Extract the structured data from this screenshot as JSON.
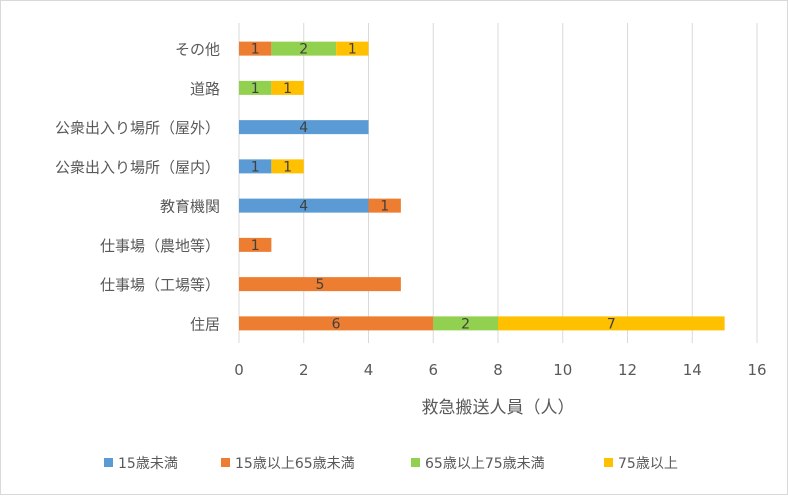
{
  "chart_data": {
    "type": "bar",
    "orientation": "horizontal",
    "stacked": true,
    "categories": [
      "住居",
      "仕事場（工場等）",
      "仕事場（農地等）",
      "教育機関",
      "公衆出入り場所（屋内）",
      "公衆出入り場所（屋外）",
      "道路",
      "その他"
    ],
    "series": [
      {
        "name": "15歳未満",
        "color": "#5B9BD5",
        "values": [
          0,
          0,
          0,
          4,
          1,
          4,
          0,
          0
        ]
      },
      {
        "name": "15歳以上65歳未満",
        "color": "#ED7D31",
        "values": [
          6,
          5,
          1,
          1,
          0,
          0,
          0,
          1
        ]
      },
      {
        "name": "65歳以上75歳未満",
        "color": "#92D050",
        "values": [
          2,
          0,
          0,
          0,
          0,
          0,
          1,
          2
        ]
      },
      {
        "name": "75歳以上",
        "color": "#FFC000",
        "values": [
          7,
          0,
          0,
          0,
          1,
          0,
          1,
          1
        ]
      }
    ],
    "xlabel": "救急搬送人員（人）",
    "ylabel": "",
    "xlim": [
      0,
      16
    ],
    "xticks": [
      0,
      2,
      4,
      6,
      8,
      10,
      12,
      14,
      16
    ],
    "grid": "vertical",
    "legend_position": "bottom",
    "data_labels": true
  }
}
